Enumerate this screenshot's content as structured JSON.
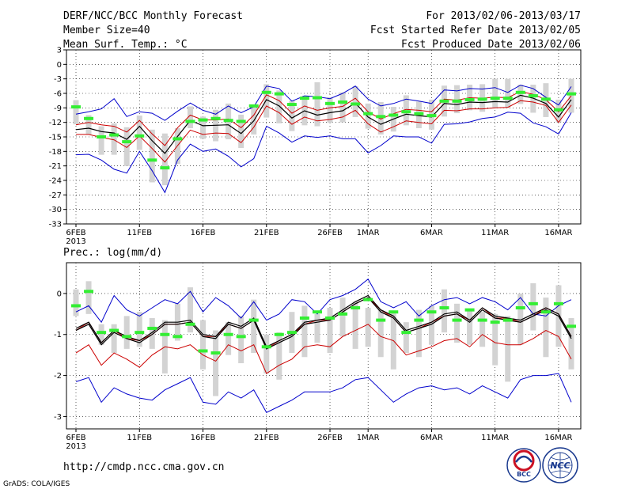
{
  "header": {
    "title": "DERF/NCC/BCC Monthly Forecast",
    "member_size": "Member Size=40",
    "variable": "Mean Surf. Temp.: °C",
    "period": "For 2013/02/06-2013/03/17",
    "started": "Fcst Started Refer Date 2013/02/05",
    "produced": "Fcst Produced Date 2013/02/06"
  },
  "footer": {
    "url": "http://cmdp.ncc.cma.gov.cn",
    "grads": "GrADS: COLA/IGES",
    "logo_bcc": "BCC",
    "logo_ncc": "NCC"
  },
  "colors": {
    "median": "#000000",
    "mid_band": "#cc0000",
    "outer_band": "#0000cc",
    "mean_mark": "#33ee33",
    "box": "#d3d3d3"
  },
  "chart_data": [
    {
      "type": "line",
      "title": "Mean Surf. Temp.: °C",
      "xlabel": "",
      "ylabel": "",
      "ylim": [
        -33,
        3
      ],
      "yticks": [
        3,
        0,
        -3,
        -6,
        -9,
        -12,
        -15,
        -18,
        -21,
        -24,
        -27,
        -30,
        -33
      ],
      "x_ticks": [
        {
          "day": 0,
          "label": "6FEB"
        },
        {
          "day": 5,
          "label": "11FEB"
        },
        {
          "day": 10,
          "label": "16FEB"
        },
        {
          "day": 15,
          "label": "21FEB"
        },
        {
          "day": 20,
          "label": "26FEB"
        },
        {
          "day": 23,
          "label": "1MAR"
        },
        {
          "day": 28,
          "label": "6MAR"
        },
        {
          "day": 33,
          "label": "11MAR"
        },
        {
          "day": 38,
          "label": "16MAR"
        }
      ],
      "year_label": "2013",
      "days": 40,
      "series": [
        {
          "name": "max",
          "role": "outer",
          "values": [
            -10.3,
            -9.8,
            -9.2,
            -7.1,
            -10.8,
            -9.8,
            -10.1,
            -11.6,
            -9.7,
            -8.0,
            -9.5,
            -10.3,
            -8.6,
            -10.0,
            -8.8,
            -4.5,
            -5.0,
            -7.6,
            -6.5,
            -6.7,
            -7.1,
            -6.0,
            -4.5,
            -7.2,
            -8.6,
            -8.1,
            -7.2,
            -7.6,
            -8.1,
            -5.3,
            -5.5,
            -5.0,
            -5.1,
            -4.8,
            -5.8,
            -4.3,
            -5.0,
            -6.8,
            -8.4,
            -4.6
          ]
        },
        {
          "name": "p75",
          "role": "mid",
          "values": [
            -12.5,
            -12.0,
            -12.5,
            -12.8,
            -14.0,
            -11.6,
            -14.4,
            -16.8,
            -13.1,
            -10.5,
            -11.5,
            -11.5,
            -11.3,
            -13.1,
            -10.5,
            -6.3,
            -7.5,
            -10.1,
            -8.6,
            -9.5,
            -9.0,
            -8.7,
            -7.0,
            -9.8,
            -11.3,
            -10.2,
            -9.3,
            -9.5,
            -9.8,
            -7.2,
            -7.4,
            -6.9,
            -7.0,
            -6.8,
            -6.9,
            -5.6,
            -6.2,
            -7.3,
            -9.8,
            -6.5
          ]
        },
        {
          "name": "median",
          "role": "median",
          "values": [
            -13.5,
            -13.2,
            -13.9,
            -14.2,
            -15.5,
            -12.8,
            -15.8,
            -18.4,
            -14.9,
            -11.6,
            -12.7,
            -12.6,
            -12.5,
            -14.3,
            -11.7,
            -7.3,
            -8.6,
            -11.1,
            -9.6,
            -10.5,
            -10.0,
            -9.6,
            -8.0,
            -10.9,
            -12.4,
            -11.3,
            -10.3,
            -10.6,
            -10.9,
            -8.1,
            -8.3,
            -7.8,
            -7.9,
            -7.7,
            -7.8,
            -6.4,
            -7.0,
            -8.1,
            -10.9,
            -7.3
          ]
        },
        {
          "name": "p25",
          "role": "mid",
          "values": [
            -14.5,
            -14.5,
            -15.1,
            -15.6,
            -17.2,
            -14.8,
            -17.4,
            -20.2,
            -16.8,
            -13.6,
            -14.5,
            -14.2,
            -14.3,
            -16.2,
            -13.0,
            -8.6,
            -10.0,
            -12.4,
            -10.9,
            -11.7,
            -11.4,
            -10.9,
            -9.5,
            -12.3,
            -14.0,
            -12.9,
            -11.7,
            -12.0,
            -12.3,
            -9.5,
            -9.6,
            -9.2,
            -9.2,
            -9.0,
            -8.9,
            -7.5,
            -7.8,
            -8.5,
            -12.0,
            -8.4
          ]
        },
        {
          "name": "min",
          "role": "outer",
          "values": [
            -18.7,
            -18.6,
            -19.8,
            -21.7,
            -22.5,
            -18.0,
            -22.0,
            -26.5,
            -19.8,
            -16.5,
            -18.0,
            -17.5,
            -19.0,
            -21.2,
            -19.5,
            -12.8,
            -14.2,
            -16.1,
            -14.8,
            -15.1,
            -14.8,
            -15.4,
            -15.4,
            -18.3,
            -16.8,
            -14.8,
            -15.0,
            -15.0,
            -16.3,
            -12.4,
            -12.3,
            -11.9,
            -11.2,
            -10.9,
            -9.9,
            -10.1,
            -12.1,
            -12.9,
            -14.4,
            -10.0
          ]
        }
      ],
      "boxes": [
        [
          -12.4,
          -7.4
        ],
        [
          -14.5,
          -10.5
        ],
        [
          -18.7,
          -12.8
        ],
        [
          -18.7,
          -12.2
        ],
        [
          -21.0,
          -13.0
        ],
        [
          -17.7,
          -10.6
        ],
        [
          -24.4,
          -13.5
        ],
        [
          -25.0,
          -14.3
        ],
        [
          -20.6,
          -13.2
        ],
        [
          -13.2,
          -8.7
        ],
        [
          -15.4,
          -10.8
        ],
        [
          -15.9,
          -9.4
        ],
        [
          -15.5,
          -8.1
        ],
        [
          -17.3,
          -10.4
        ],
        [
          -14.5,
          -8.7
        ],
        [
          -11.0,
          -4.1
        ],
        [
          -12.2,
          -5.4
        ],
        [
          -13.8,
          -7.5
        ],
        [
          -12.6,
          -6.5
        ],
        [
          -12.8,
          -3.7
        ],
        [
          -12.1,
          -6.8
        ],
        [
          -12.0,
          -5.8
        ],
        [
          -10.9,
          -4.5
        ],
        [
          -13.3,
          -8.1
        ],
        [
          -14.5,
          -7.8
        ],
        [
          -13.9,
          -8.8
        ],
        [
          -12.6,
          -6.4
        ],
        [
          -13.2,
          -7.7
        ],
        [
          -13.5,
          -7.3
        ],
        [
          -10.8,
          -4.4
        ],
        [
          -10.1,
          -4.3
        ],
        [
          -9.5,
          -4.2
        ],
        [
          -9.8,
          -4.1
        ],
        [
          -9.0,
          -3.0
        ],
        [
          -8.9,
          -3.0
        ],
        [
          -8.2,
          -4.2
        ],
        [
          -10.0,
          -4.2
        ],
        [
          -10.9,
          -3.9
        ],
        [
          -12.0,
          -7.3
        ],
        [
          -10.0,
          -3.0
        ]
      ],
      "means": [
        -8.8,
        -11.2,
        -15.0,
        -14.6,
        -16.0,
        -14.8,
        -19.8,
        -21.4,
        -15.4,
        -11.8,
        -11.5,
        -11.2,
        -11.6,
        -11.8,
        -8.6,
        -5.8,
        -6.1,
        -8.3,
        -7.0,
        -6.9,
        -8.1,
        -7.8,
        -8.2,
        -10.2,
        -10.8,
        -10.5,
        -9.8,
        -10.2,
        -10.6,
        -7.6,
        -7.6,
        -7.3,
        -7.2,
        -7.0,
        -7.0,
        -5.8,
        -6.5,
        -7.2,
        -9.4,
        -6.1
      ]
    },
    {
      "type": "line",
      "title": "Prec.: log(mm/d)",
      "xlabel": "",
      "ylabel": "",
      "ylim": [
        -3.3,
        0.75
      ],
      "yticks": [
        0,
        -1,
        -2,
        -3
      ],
      "x_ticks": [
        {
          "day": 0,
          "label": "6FEB"
        },
        {
          "day": 5,
          "label": "11FEB"
        },
        {
          "day": 10,
          "label": "16FEB"
        },
        {
          "day": 15,
          "label": "21FEB"
        },
        {
          "day": 20,
          "label": "26FEB"
        },
        {
          "day": 23,
          "label": "1MAR"
        },
        {
          "day": 28,
          "label": "6MAR"
        },
        {
          "day": 33,
          "label": "11MAR"
        },
        {
          "day": 38,
          "label": "16MAR"
        }
      ],
      "year_label": "2013",
      "days": 40,
      "series": [
        {
          "name": "max",
          "role": "outer",
          "values": [
            -0.45,
            -0.3,
            -0.7,
            -0.05,
            -0.4,
            -0.55,
            -0.35,
            -0.15,
            -0.25,
            0.05,
            -0.45,
            -0.1,
            -0.3,
            -0.6,
            -0.2,
            -0.65,
            -0.5,
            -0.15,
            -0.2,
            -0.5,
            -0.15,
            -0.05,
            0.1,
            0.35,
            -0.2,
            -0.35,
            -0.2,
            -0.55,
            -0.3,
            -0.15,
            -0.1,
            -0.25,
            -0.1,
            -0.2,
            -0.4,
            -0.1,
            -0.5,
            -0.55,
            -0.3,
            -0.15
          ]
        },
        {
          "name": "p75",
          "role": "mid",
          "values": [
            -0.9,
            -0.7,
            -1.2,
            -0.9,
            -1.1,
            -1.15,
            -1.0,
            -0.75,
            -0.75,
            -0.7,
            -1.05,
            -1.05,
            -0.75,
            -0.85,
            -0.65,
            -1.35,
            -1.15,
            -1.0,
            -0.75,
            -0.65,
            -0.65,
            -0.45,
            -0.25,
            -0.1,
            -0.4,
            -0.6,
            -0.95,
            -0.85,
            -0.7,
            -0.55,
            -0.5,
            -0.65,
            -0.35,
            -0.6,
            -0.6,
            -0.7,
            -0.55,
            -0.35,
            -0.5,
            -1.05
          ]
        },
        {
          "name": "median",
          "role": "median",
          "values": [
            -0.9,
            -0.75,
            -1.25,
            -0.95,
            -1.1,
            -1.2,
            -1.0,
            -0.75,
            -0.75,
            -0.7,
            -1.05,
            -1.1,
            -0.75,
            -0.85,
            -0.65,
            -1.35,
            -1.2,
            -1.05,
            -0.75,
            -0.7,
            -0.65,
            -0.45,
            -0.25,
            -0.1,
            -0.45,
            -0.6,
            -0.95,
            -0.85,
            -0.75,
            -0.55,
            -0.5,
            -0.7,
            -0.4,
            -0.6,
            -0.65,
            -0.7,
            -0.55,
            -0.4,
            -0.55,
            -1.1
          ]
        },
        {
          "name": "p25",
          "role": "mid",
          "values": [
            -1.45,
            -1.25,
            -1.75,
            -1.45,
            -1.6,
            -1.8,
            -1.5,
            -1.3,
            -1.35,
            -1.25,
            -1.5,
            -1.65,
            -1.25,
            -1.4,
            -1.25,
            -1.95,
            -1.75,
            -1.6,
            -1.3,
            -1.25,
            -1.3,
            -1.05,
            -0.9,
            -0.75,
            -1.05,
            -1.15,
            -1.5,
            -1.4,
            -1.3,
            -1.15,
            -1.1,
            -1.3,
            -1.0,
            -1.2,
            -1.25,
            -1.25,
            -1.1,
            -0.9,
            -1.05,
            -1.6
          ]
        },
        {
          "name": "min",
          "role": "outer",
          "values": [
            -2.15,
            -2.05,
            -2.65,
            -2.3,
            -2.45,
            -2.55,
            -2.6,
            -2.35,
            -2.2,
            -2.05,
            -2.65,
            -2.7,
            -2.4,
            -2.55,
            -2.35,
            -2.9,
            -2.75,
            -2.6,
            -2.4,
            -2.4,
            -2.4,
            -2.3,
            -2.1,
            -2.05,
            -2.35,
            -2.65,
            -2.45,
            -2.3,
            -2.25,
            -2.35,
            -2.3,
            -2.45,
            -2.25,
            -2.4,
            -2.55,
            -2.1,
            -2.0,
            -2.0,
            -1.95,
            -2.65
          ]
        },
        {
          "name": "p75b",
          "role": "median",
          "values": [
            -0.85,
            -0.7,
            -1.2,
            -0.9,
            -1.05,
            -1.15,
            -0.95,
            -0.7,
            -0.7,
            -0.65,
            -1.0,
            -1.05,
            -0.7,
            -0.8,
            -0.6,
            -1.3,
            -1.15,
            -1.0,
            -0.7,
            -0.65,
            -0.6,
            -0.4,
            -0.2,
            -0.05,
            -0.4,
            -0.55,
            -0.9,
            -0.8,
            -0.7,
            -0.5,
            -0.45,
            -0.65,
            -0.35,
            -0.55,
            -0.6,
            -0.65,
            -0.5,
            -0.35,
            -0.5,
            -1.05
          ]
        }
      ],
      "boxes": [
        [
          -0.55,
          0.1
        ],
        [
          -0.5,
          0.3
        ],
        [
          -1.25,
          -0.75
        ],
        [
          -1.45,
          -0.75
        ],
        [
          -1.35,
          -0.55
        ],
        [
          -1.3,
          -0.45
        ],
        [
          -1.35,
          -0.6
        ],
        [
          -1.95,
          -0.65
        ],
        [
          -1.15,
          -0.25
        ],
        [
          -0.95,
          0.15
        ],
        [
          -1.85,
          -0.65
        ],
        [
          -2.5,
          -0.9
        ],
        [
          -1.5,
          -0.7
        ],
        [
          -1.7,
          -0.55
        ],
        [
          -1.45,
          -0.15
        ],
        [
          -1.95,
          -1.0
        ],
        [
          -2.1,
          -0.95
        ],
        [
          -1.45,
          -0.45
        ],
        [
          -1.55,
          -0.3
        ],
        [
          -1.2,
          -0.5
        ],
        [
          -1.45,
          -0.35
        ],
        [
          -1.05,
          -0.1
        ],
        [
          -1.35,
          -0.2
        ],
        [
          -1.3,
          -0.35
        ],
        [
          -1.55,
          -0.4
        ],
        [
          -1.85,
          -0.45
        ],
        [
          -1.45,
          -0.7
        ],
        [
          -1.55,
          -0.4
        ],
        [
          -1.25,
          -0.3
        ],
        [
          -0.95,
          0.1
        ],
        [
          -1.2,
          -0.25
        ],
        [
          -1.25,
          -0.4
        ],
        [
          -1.3,
          -0.45
        ],
        [
          -1.75,
          -0.5
        ],
        [
          -2.15,
          -0.55
        ],
        [
          -1.25,
          0.0
        ],
        [
          -0.9,
          0.25
        ],
        [
          -1.55,
          -0.1
        ],
        [
          -1.3,
          0.2
        ],
        [
          -1.85,
          -0.6
        ]
      ],
      "means": [
        -0.3,
        0.05,
        -0.95,
        -0.9,
        -1.05,
        -0.95,
        -0.85,
        -1.0,
        -1.05,
        -0.75,
        -1.4,
        -1.45,
        -1.0,
        -1.05,
        -0.65,
        -1.3,
        -1.0,
        -0.95,
        -0.6,
        -0.45,
        -0.6,
        -0.5,
        -0.35,
        -0.15,
        -0.65,
        -0.45,
        -0.95,
        -0.65,
        -0.45,
        -0.35,
        -0.65,
        -0.4,
        -0.65,
        -0.7,
        -0.65,
        -0.35,
        -0.25,
        -0.45,
        -0.25,
        -0.8
      ]
    }
  ]
}
